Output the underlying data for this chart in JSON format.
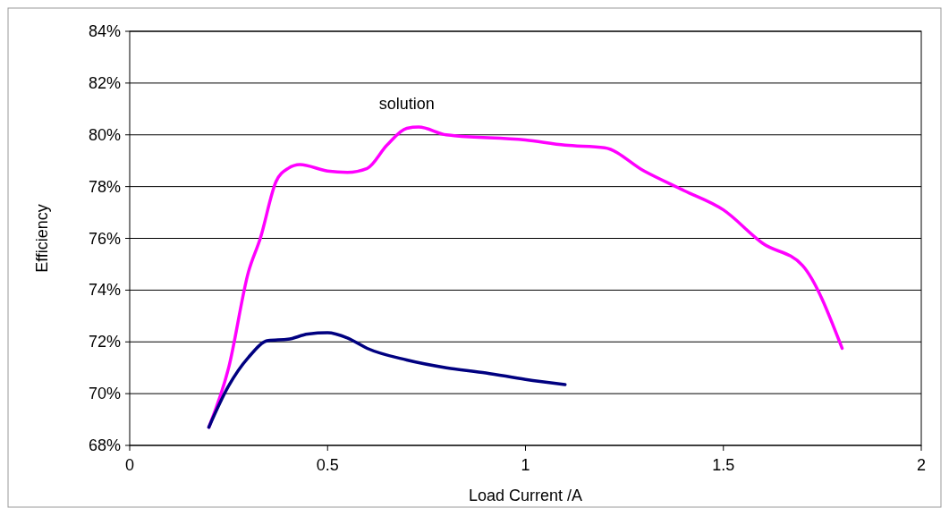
{
  "chart_data": {
    "type": "line",
    "xlabel": "Load Current /A",
    "ylabel": "Efficiency",
    "xlim": [
      0,
      2
    ],
    "xticks": [
      0,
      0.5,
      1,
      1.5,
      2
    ],
    "ylim": [
      68,
      84
    ],
    "yticks": [
      {
        "value": 68,
        "label": "68%"
      },
      {
        "value": 70,
        "label": "70%"
      },
      {
        "value": 72,
        "label": "72%"
      },
      {
        "value": 74,
        "label": "74%"
      },
      {
        "value": 76,
        "label": "76%"
      },
      {
        "value": 78,
        "label": "78%"
      },
      {
        "value": 80,
        "label": "80%"
      },
      {
        "value": 82,
        "label": "82%"
      },
      {
        "value": 84,
        "label": "84%"
      }
    ],
    "grid": "y",
    "marker": "none",
    "line_style": "solid",
    "series": [
      {
        "name": "solution",
        "color": "#ff00ff",
        "x": [
          0.2,
          0.25,
          0.3,
          0.33,
          0.37,
          0.4,
          0.43,
          0.5,
          0.55,
          0.6,
          0.65,
          0.7,
          0.73,
          0.8,
          1.0,
          1.1,
          1.2,
          1.3,
          1.4,
          1.5,
          1.6,
          1.7,
          1.8
        ],
        "values": [
          68.7,
          71.0,
          74.7,
          76.0,
          78.2,
          78.7,
          78.85,
          78.6,
          78.55,
          78.7,
          79.6,
          80.25,
          80.3,
          80.0,
          79.8,
          79.6,
          79.5,
          78.6,
          77.85,
          77.1,
          75.8,
          74.95,
          71.75
        ]
      },
      {
        "color": "#000080",
        "x": [
          0.2,
          0.25,
          0.3,
          0.35,
          0.4,
          0.45,
          0.5,
          0.55,
          0.6,
          0.7,
          0.8,
          0.9,
          1.0,
          1.1
        ],
        "values": [
          68.7,
          70.3,
          71.4,
          72.05,
          72.1,
          72.3,
          72.35,
          72.15,
          71.75,
          71.3,
          71.0,
          70.8,
          70.55,
          70.35
        ]
      }
    ]
  }
}
